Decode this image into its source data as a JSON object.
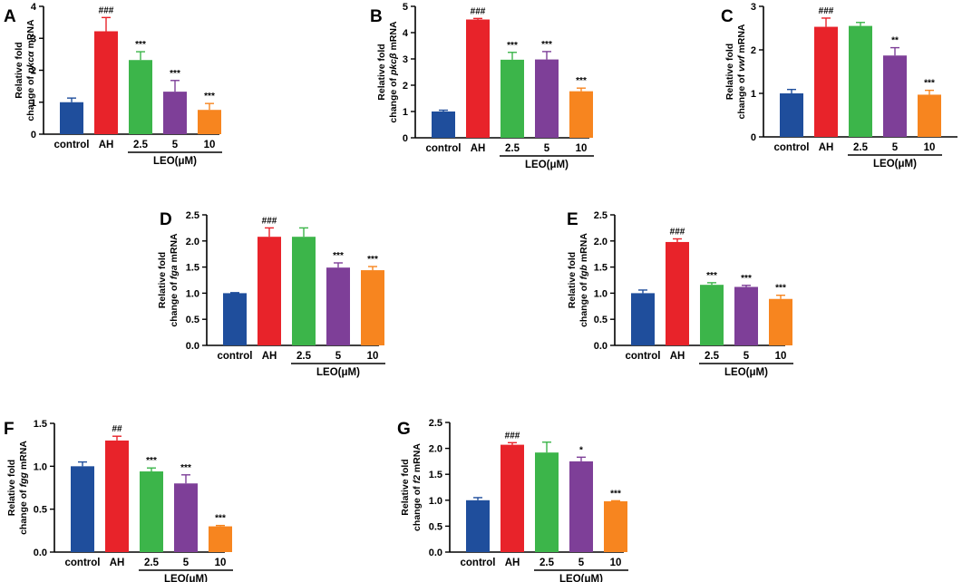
{
  "figure": {
    "group_label": "LEO(μM)",
    "colors": {
      "control": "#1f4e9c",
      "AH": "#e8232a",
      "2.5": "#3cb54a",
      "5": "#7e3f98",
      "10": "#f7851f",
      "axis": "#000000"
    }
  },
  "chart_data": [
    {
      "panel": "A",
      "type": "bar",
      "categories": [
        "control",
        "AH",
        "2.5",
        "5",
        "10"
      ],
      "values": [
        1.0,
        3.22,
        2.32,
        1.33,
        0.76
      ],
      "errors": [
        0.13,
        0.43,
        0.26,
        0.35,
        0.2
      ],
      "annotations": [
        "",
        "###",
        "***",
        "***",
        "***"
      ],
      "ylabel_line1": "Relative fold",
      "ylabel_prefix": "change of ",
      "ylabel_gene": "pkcα",
      "ylabel_suffix": " mRNA",
      "ylim": [
        0,
        4
      ],
      "yticks": [
        0,
        1,
        2,
        3,
        4
      ]
    },
    {
      "panel": "B",
      "type": "bar",
      "categories": [
        "control",
        "AH",
        "2.5",
        "5",
        "10"
      ],
      "values": [
        1.0,
        4.5,
        2.97,
        2.98,
        1.77
      ],
      "errors": [
        0.05,
        0.04,
        0.28,
        0.3,
        0.12
      ],
      "annotations": [
        "",
        "###",
        "***",
        "***",
        "***"
      ],
      "ylabel_line1": "Relative fold",
      "ylabel_prefix": "change of ",
      "ylabel_gene": "pkcβ",
      "ylabel_suffix": " mRNA",
      "ylim": [
        0,
        5
      ],
      "yticks": [
        0,
        1,
        2,
        3,
        4,
        5
      ]
    },
    {
      "panel": "C",
      "type": "bar",
      "categories": [
        "control",
        "AH",
        "2.5",
        "5",
        "10"
      ],
      "values": [
        1.0,
        2.53,
        2.55,
        1.87,
        0.97
      ],
      "errors": [
        0.09,
        0.2,
        0.08,
        0.18,
        0.1
      ],
      "annotations": [
        "",
        "###",
        "",
        "**",
        "***"
      ],
      "ylabel_line1": "Relative fold",
      "ylabel_prefix": "change of ",
      "ylabel_gene": "vwf",
      "ylabel_suffix": " mRNA",
      "ylim": [
        0,
        3
      ],
      "yticks": [
        0,
        1,
        2,
        3
      ]
    },
    {
      "panel": "D",
      "type": "bar",
      "categories": [
        "control",
        "AH",
        "2.5",
        "5",
        "10"
      ],
      "values": [
        1.0,
        2.08,
        2.08,
        1.49,
        1.44
      ],
      "errors": [
        0.01,
        0.17,
        0.17,
        0.09,
        0.07
      ],
      "annotations": [
        "",
        "###",
        "",
        "***",
        "***"
      ],
      "ylabel_line1": "Relative fold",
      "ylabel_prefix": "change of ",
      "ylabel_gene": "fga",
      "ylabel_suffix": " mRNA",
      "ylim": [
        0,
        2.5
      ],
      "yticks": [
        "0.0",
        "0.5",
        "1.0",
        "1.5",
        "2.0",
        "2.5"
      ]
    },
    {
      "panel": "E",
      "type": "bar",
      "categories": [
        "control",
        "AH",
        "2.5",
        "5",
        "10"
      ],
      "values": [
        1.0,
        1.98,
        1.16,
        1.12,
        0.89
      ],
      "errors": [
        0.06,
        0.06,
        0.04,
        0.03,
        0.07
      ],
      "annotations": [
        "",
        "###",
        "***",
        "***",
        "***"
      ],
      "ylabel_line1": "Relative fold",
      "ylabel_prefix": "change of ",
      "ylabel_gene": "fgb",
      "ylabel_suffix": " mRNA",
      "ylim": [
        0,
        2.5
      ],
      "yticks": [
        "0.0",
        "0.5",
        "1.0",
        "1.5",
        "2.0",
        "2.5"
      ]
    },
    {
      "panel": "F",
      "type": "bar",
      "categories": [
        "control",
        "AH",
        "2.5",
        "5",
        "10"
      ],
      "values": [
        1.0,
        1.3,
        0.94,
        0.8,
        0.3
      ],
      "errors": [
        0.05,
        0.05,
        0.04,
        0.1,
        0.01
      ],
      "annotations": [
        "",
        "##",
        "***",
        "***",
        "***"
      ],
      "ylabel_line1": "Relative fold",
      "ylabel_prefix": "change of ",
      "ylabel_gene": "fgg",
      "ylabel_suffix": " mRNA",
      "ylim": [
        0,
        1.5
      ],
      "yticks": [
        "0.0",
        "0.5",
        "1.0",
        "1.5"
      ]
    },
    {
      "panel": "G",
      "type": "bar",
      "categories": [
        "control",
        "AH",
        "2.5",
        "5",
        "10"
      ],
      "values": [
        1.0,
        2.07,
        1.92,
        1.75,
        0.98
      ],
      "errors": [
        0.05,
        0.04,
        0.2,
        0.08,
        0.01
      ],
      "annotations": [
        "",
        "###",
        "",
        "*",
        "***"
      ],
      "ylabel_line1": "Relative fold",
      "ylabel_prefix": "change of ",
      "ylabel_gene": "f2",
      "ylabel_suffix": " mRNA",
      "ylim": [
        0,
        2.5
      ],
      "yticks": [
        "0.0",
        "0.5",
        "1.0",
        "1.5",
        "2.0",
        "2.5"
      ]
    }
  ]
}
